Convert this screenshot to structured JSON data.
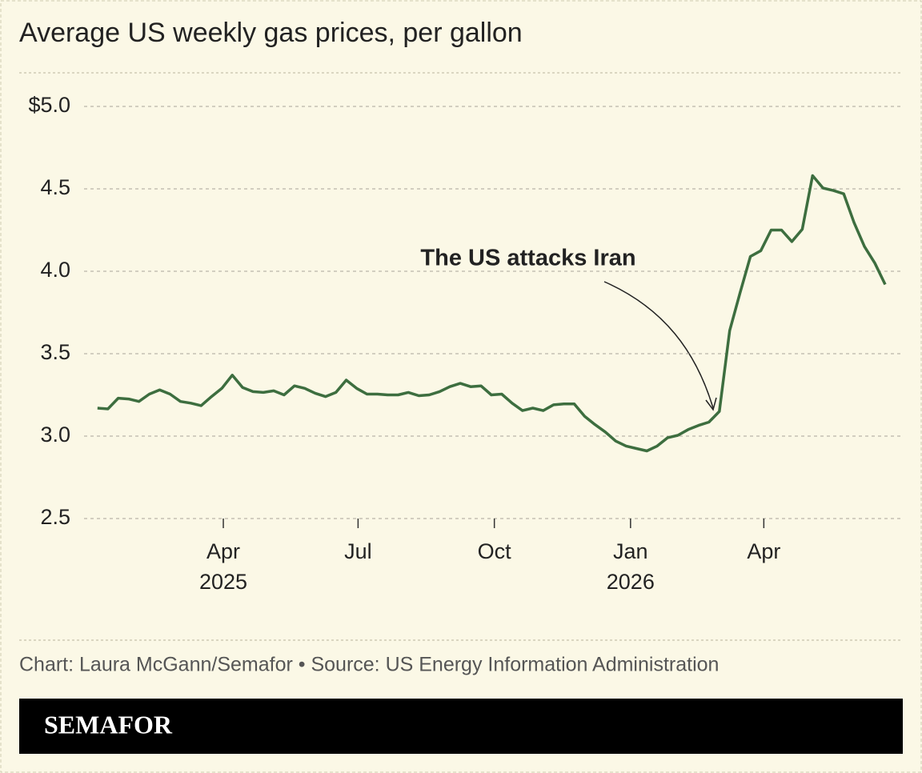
{
  "chart_data": {
    "type": "line",
    "title": "Average US weekly gas prices, per gallon",
    "annotation": "The US attacks Iran",
    "source": "Chart: Laura McGann/Semafor • Source: US Energy Information Administration",
    "brand": "SEMAFOR",
    "color": "#3d6e3f",
    "grid": true,
    "values": [
      3.17,
      3.165,
      3.23,
      3.225,
      3.21,
      3.255,
      3.28,
      3.255,
      3.21,
      3.2,
      3.185,
      3.24,
      3.29,
      3.37,
      3.295,
      3.27,
      3.265,
      3.275,
      3.25,
      3.305,
      3.29,
      3.26,
      3.24,
      3.265,
      3.34,
      3.29,
      3.255,
      3.255,
      3.25,
      3.25,
      3.265,
      3.245,
      3.25,
      3.27,
      3.3,
      3.32,
      3.3,
      3.305,
      3.25,
      3.255,
      3.2,
      3.155,
      3.17,
      3.155,
      3.19,
      3.195,
      3.195,
      3.12,
      3.07,
      3.025,
      2.97,
      2.94,
      2.925,
      2.91,
      2.94,
      2.99,
      3.005,
      3.04,
      3.065,
      3.085,
      3.15,
      3.64,
      3.87,
      4.09,
      4.125,
      4.25,
      4.25,
      4.18,
      4.255,
      4.58,
      4.505,
      4.49,
      4.47,
      4.295,
      4.15,
      4.05,
      3.92
    ],
    "xlim": [
      -1.3,
      77.7
    ],
    "xticks": [
      {
        "value": 12.14,
        "label": "Apr"
      },
      {
        "value": 25.14,
        "label": "Jul"
      },
      {
        "value": 38.29,
        "label": "Oct"
      },
      {
        "value": 51.43,
        "label": "Jan"
      },
      {
        "value": 64.29,
        "label": "Apr"
      }
    ],
    "xtick_years": [
      "2025",
      null,
      null,
      "2026",
      null
    ],
    "ylim": [
      2.5,
      5.0
    ],
    "yticks": [
      2.5,
      {
        "value": 3.0,
        "label": "3.0"
      },
      3.5,
      {
        "value": 4.0,
        "label": "4.0"
      },
      4.5,
      {
        "value": 5.0,
        "label": "$5.0"
      }
    ]
  }
}
